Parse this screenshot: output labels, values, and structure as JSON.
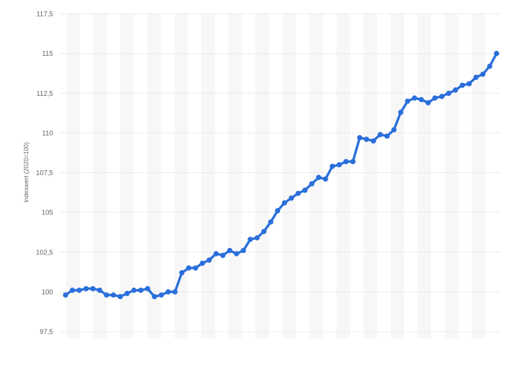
{
  "chart_data": {
    "type": "line",
    "title": "",
    "xlabel": "",
    "ylabel": "Indexwert (2020=100)",
    "ylim": [
      97.5,
      117.5
    ],
    "yticks": [
      "97,5",
      "100",
      "102,5",
      "105",
      "107,5",
      "110",
      "112,5",
      "115",
      "117,5"
    ],
    "grid": true,
    "line_color": "#2a6fdb",
    "series": [
      {
        "values": [
          99.8,
          100.1,
          100.1,
          100.2,
          100.2,
          100.1,
          99.8,
          99.8,
          99.7,
          99.9,
          100.1,
          100.1,
          100.2,
          99.7,
          99.8,
          100.0,
          100.0,
          101.2,
          101.5,
          101.5,
          101.8,
          102.0,
          102.4,
          102.3,
          102.6,
          102.4,
          102.6,
          103.3,
          103.4,
          103.8,
          104.4,
          105.1,
          105.6,
          105.9,
          106.2,
          106.4,
          106.8,
          107.2,
          107.1,
          107.9,
          108.0,
          108.2,
          108.2,
          109.7,
          109.6,
          109.5,
          109.9,
          109.8,
          110.2,
          111.3,
          112.0,
          112.2,
          112.1,
          111.9,
          112.2,
          112.3,
          112.5,
          112.7,
          113.0,
          113.1,
          113.5,
          113.7,
          114.2,
          115.0
        ]
      }
    ]
  }
}
